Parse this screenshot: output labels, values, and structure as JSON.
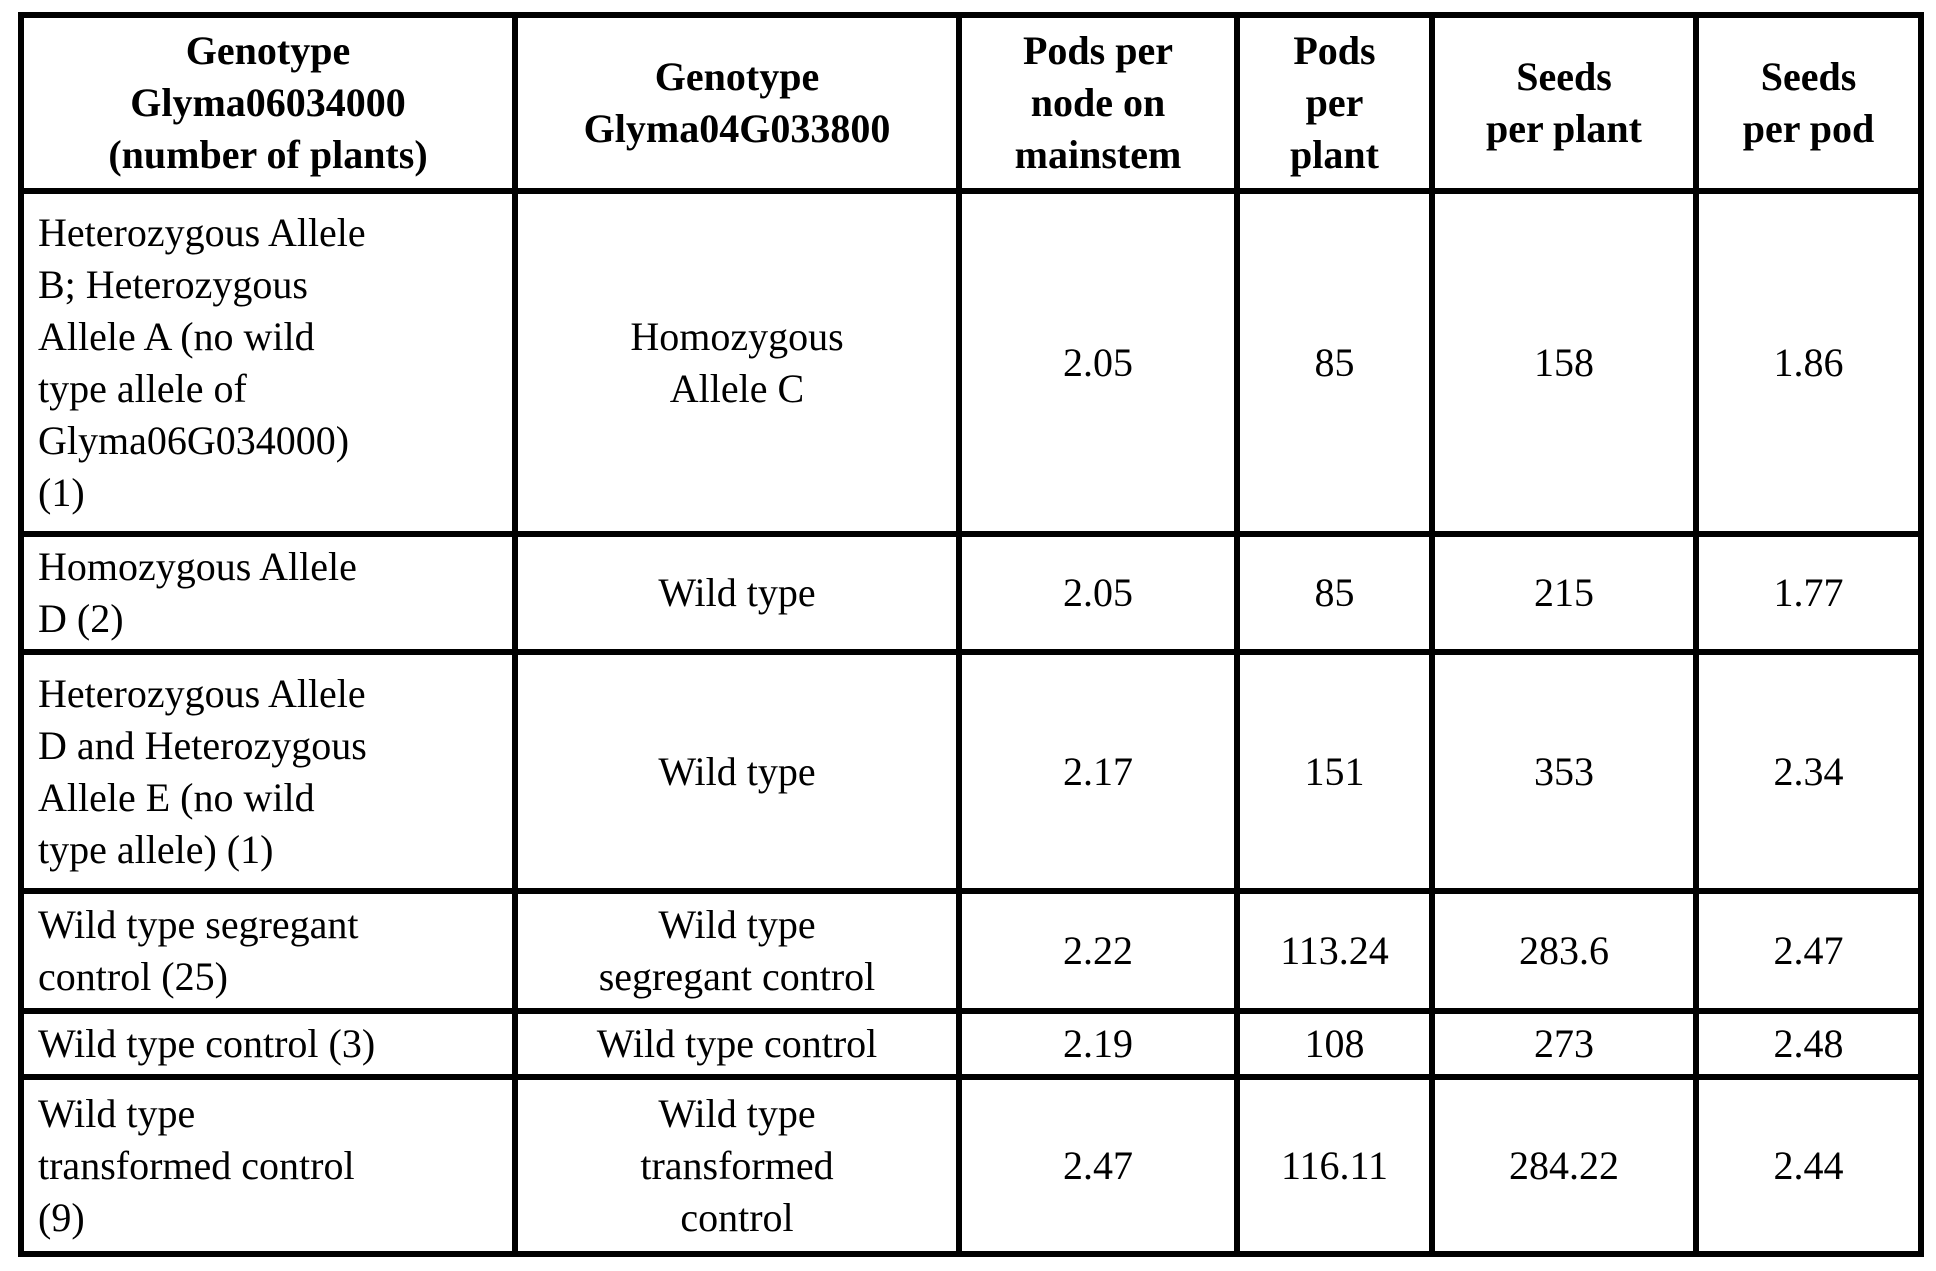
{
  "table": {
    "columns": [
      "Genotype\nGlyma06034000\n(number of plants)",
      "Genotype\nGlyma04G033800",
      "Pods per\nnode on\nmainstem",
      "Pods\nper\nplant",
      "Seeds\nper plant",
      "Seeds\nper pod"
    ],
    "rows": [
      [
        "Heterozygous Allele\nB; Heterozygous\nAllele A (no wild\ntype allele of\nGlyma06G034000)\n(1)",
        "Homozygous\nAllele C",
        "2.05",
        "85",
        "158",
        "1.86"
      ],
      [
        "Homozygous Allele\nD (2)",
        "Wild type",
        "2.05",
        "85",
        "215",
        "1.77"
      ],
      [
        "Heterozygous Allele\nD and Heterozygous\nAllele E (no wild\ntype allele) (1)",
        "Wild type",
        "2.17",
        "151",
        "353",
        "2.34"
      ],
      [
        "Wild type segregant\ncontrol (25)",
        "Wild type\nsegregant control",
        "2.22",
        "113.24",
        "283.6",
        "2.47"
      ],
      [
        "Wild type control (3)",
        "Wild type control",
        "2.19",
        "108",
        "273",
        "2.48"
      ],
      [
        "Wild type\ntransformed control\n(9)",
        "Wild type\ntransformed\ncontrol",
        "2.47",
        "116.11",
        "284.22",
        "2.44"
      ]
    ]
  }
}
